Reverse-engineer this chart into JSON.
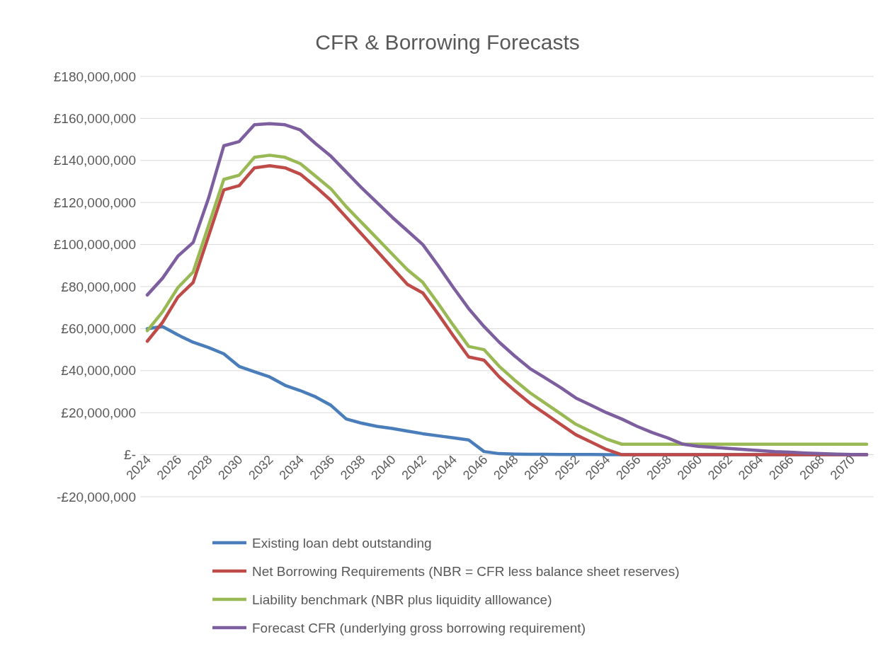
{
  "chart_data": {
    "type": "line",
    "title": "CFR & Borrowing Forecasts",
    "categories": [
      "2024",
      null,
      "2026",
      null,
      "2028",
      null,
      "2030",
      null,
      "2032",
      null,
      "2034",
      null,
      "2036",
      null,
      "2038",
      null,
      "2040",
      null,
      "2042",
      null,
      "2044",
      null,
      "2046",
      null,
      "2048",
      null,
      "2050",
      null,
      "2052",
      null,
      "2054",
      null,
      "2056",
      null,
      "2058",
      null,
      "2060",
      null,
      "2062",
      null,
      "2064",
      null,
      "2066",
      null,
      "2068",
      null,
      "2070",
      null
    ],
    "series": [
      {
        "name": "Existing loan debt outstanding",
        "color": "#4a7ebb",
        "values": [
          60000000,
          61000000,
          57000000,
          53500000,
          51000000,
          48000000,
          42000000,
          39500000,
          37000000,
          33000000,
          30500000,
          27500000,
          23500000,
          17000000,
          15000000,
          13500000,
          12500000,
          11200000,
          10000000,
          9000000,
          8000000,
          7000000,
          1500000,
          500000,
          300000,
          200000,
          200000,
          100000,
          100000,
          100000,
          0,
          0,
          0,
          0,
          0,
          0,
          0,
          0,
          0,
          0,
          0,
          0,
          0,
          0,
          0,
          0,
          0,
          0
        ]
      },
      {
        "name": "Net Borrowing Requirements (NBR = CFR less balance sheet reserves)",
        "color": "#be4b48",
        "values": [
          54000000,
          63000000,
          75000000,
          82000000,
          104000000,
          126000000,
          128000000,
          136500000,
          137500000,
          136500000,
          133500000,
          127500000,
          121000000,
          113000000,
          105000000,
          97000000,
          89000000,
          81000000,
          77000000,
          67000000,
          56500000,
          46500000,
          45000000,
          37000000,
          30500000,
          24500000,
          19500000,
          14500000,
          9500000,
          6000000,
          2500000,
          0,
          0,
          0,
          0,
          0,
          0,
          0,
          0,
          0,
          0,
          0,
          0,
          0,
          0,
          0,
          0,
          0
        ]
      },
      {
        "name": "Liability benchmark (NBR plus liquidity alllowance)",
        "color": "#98b954",
        "values": [
          59000000,
          68000000,
          79500000,
          87000000,
          109000000,
          131000000,
          133000000,
          141500000,
          142500000,
          141500000,
          138500000,
          132500000,
          126500000,
          118000000,
          110500000,
          103000000,
          95500000,
          88000000,
          82000000,
          72000000,
          61500000,
          51500000,
          50000000,
          42000000,
          35500000,
          29500000,
          24500000,
          19500000,
          14500000,
          11000000,
          7500000,
          5000000,
          5000000,
          5000000,
          5000000,
          5000000,
          5000000,
          5000000,
          5000000,
          5000000,
          5000000,
          5000000,
          5000000,
          5000000,
          5000000,
          5000000,
          5000000,
          5000000
        ]
      },
      {
        "name": "Forecast CFR (underlying gross borrowing requirement)",
        "color": "#7d5fa0",
        "values": [
          76000000,
          84000000,
          94500000,
          101000000,
          122000000,
          147000000,
          149000000,
          157000000,
          157500000,
          157000000,
          154500000,
          148000000,
          142000000,
          134500000,
          127000000,
          120000000,
          113000000,
          106500000,
          100000000,
          90000000,
          79500000,
          69500000,
          61000000,
          53500000,
          47000000,
          41000000,
          36500000,
          32000000,
          27000000,
          23500000,
          20000000,
          17000000,
          13500000,
          10500000,
          8000000,
          5000000,
          4000000,
          3500000,
          3000000,
          2500000,
          2000000,
          1500000,
          1200000,
          800000,
          500000,
          300000,
          100000,
          0
        ]
      }
    ],
    "ylim": [
      -20000000,
      180000000
    ],
    "yticks": [
      {
        "value": -20000000,
        "label": "-£20,000,000"
      },
      {
        "value": 0,
        "label": "£-"
      },
      {
        "value": 20000000,
        "label": "£20,000,000"
      },
      {
        "value": 40000000,
        "label": "£40,000,000"
      },
      {
        "value": 60000000,
        "label": "£60,000,000"
      },
      {
        "value": 80000000,
        "label": "£80,000,000"
      },
      {
        "value": 100000000,
        "label": "£100,000,000"
      },
      {
        "value": 120000000,
        "label": "£120,000,000"
      },
      {
        "value": 140000000,
        "label": "£140,000,000"
      },
      {
        "value": 160000000,
        "label": "£160,000,000"
      },
      {
        "value": 180000000,
        "label": "£180,000,000"
      }
    ],
    "grid": "y",
    "legend": "bottom",
    "marker": "none",
    "line_style": "solid"
  }
}
